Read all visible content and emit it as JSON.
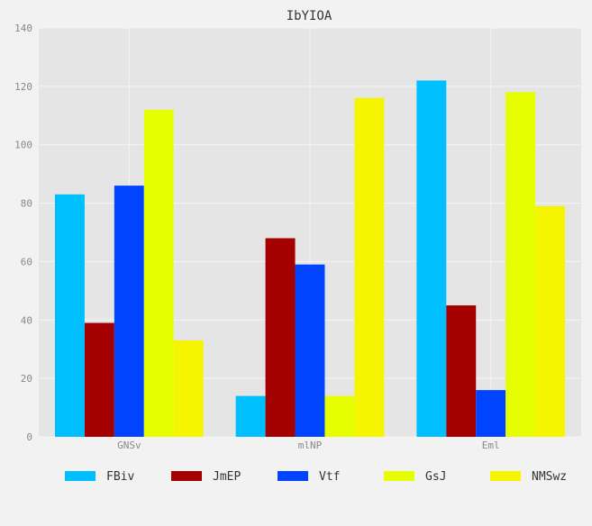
{
  "chart_data": {
    "type": "bar",
    "title": "IbYIOA",
    "xlabel": "",
    "ylabel": "",
    "categories": [
      "GNSv",
      "mlNP",
      "Eml"
    ],
    "ylim": [
      0,
      140
    ],
    "yticks": [
      0,
      20,
      40,
      60,
      80,
      100,
      120,
      140
    ],
    "grid": true,
    "legend_position": "bottom",
    "series": [
      {
        "name": "FBiv",
        "color": "#00bfff",
        "values": [
          83,
          14,
          122
        ]
      },
      {
        "name": "JmEP",
        "color": "#a50000",
        "values": [
          39,
          68,
          45
        ]
      },
      {
        "name": "Vtf",
        "color": "#0044ff",
        "values": [
          86,
          59,
          16
        ]
      },
      {
        "name": "GsJ",
        "color": "#e6ff00",
        "values": [
          112,
          14,
          118
        ]
      },
      {
        "name": "NMSwz",
        "color": "#f5f500",
        "values": [
          33,
          116,
          79
        ]
      }
    ]
  }
}
